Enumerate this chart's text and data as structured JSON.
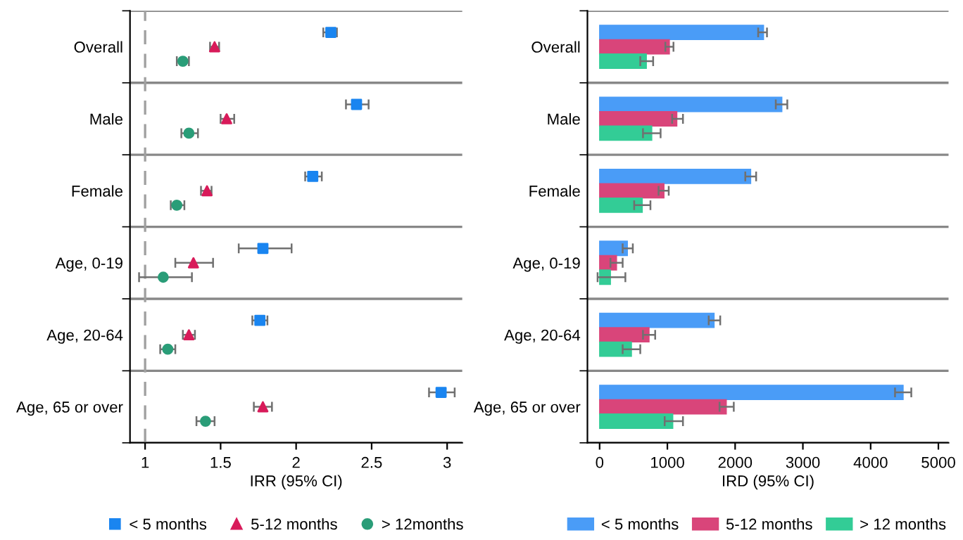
{
  "chart_data": [
    {
      "type": "scatter",
      "orientation": "horizontal",
      "categories": [
        "Overall",
        "Male",
        "Female",
        "Age, 0-19",
        "Age, 20-64",
        "Age, 65 or over"
      ],
      "xlabel": "IRR (95% CI)",
      "xlim": [
        0.9,
        3.1
      ],
      "xticks": [
        1,
        1.5,
        2,
        2.5,
        3
      ],
      "grid": "y",
      "legend": "bottom",
      "ref_lines": [
        {
          "axis": "x",
          "value": 1,
          "label": null,
          "color": "#a0a0a0",
          "line_style": "dashed"
        }
      ],
      "series": [
        {
          "name": "< 5 months",
          "color": "#1a85f0",
          "marker": "square",
          "values": [
            2.23,
            2.4,
            2.11,
            1.78,
            1.76,
            2.96
          ],
          "errors": [
            [
              2.18,
              2.27
            ],
            [
              2.33,
              2.48
            ],
            [
              2.06,
              2.17
            ],
            [
              1.62,
              1.97
            ],
            [
              1.71,
              1.81
            ],
            [
              2.88,
              3.05
            ]
          ]
        },
        {
          "name": "5-12 months",
          "color": "#d81b5a",
          "marker": "triangle",
          "values": [
            1.46,
            1.54,
            1.41,
            1.32,
            1.29,
            1.78
          ],
          "errors": [
            [
              1.43,
              1.49
            ],
            [
              1.5,
              1.59
            ],
            [
              1.37,
              1.44
            ],
            [
              1.2,
              1.45
            ],
            [
              1.25,
              1.33
            ],
            [
              1.72,
              1.84
            ]
          ]
        },
        {
          "name": "> 12months",
          "color": "#2a9d78",
          "marker": "circle",
          "values": [
            1.25,
            1.29,
            1.21,
            1.12,
            1.15,
            1.4
          ],
          "errors": [
            [
              1.21,
              1.29
            ],
            [
              1.24,
              1.35
            ],
            [
              1.17,
              1.26
            ],
            [
              0.96,
              1.31
            ],
            [
              1.1,
              1.2
            ],
            [
              1.34,
              1.46
            ]
          ]
        }
      ]
    },
    {
      "type": "bar",
      "orientation": "horizontal",
      "categories": [
        "Overall",
        "Male",
        "Female",
        "Age, 0-19",
        "Age, 20-64",
        "Age, 65 or over"
      ],
      "xlabel": "IRD (95% CI)",
      "xlim": [
        -180,
        5150
      ],
      "xticks": [
        0,
        1000,
        2000,
        3000,
        4000,
        5000
      ],
      "grid": "y",
      "legend": "bottom",
      "series": [
        {
          "name": "< 5 months",
          "color": "#4a9cf7",
          "values": [
            2420,
            2690,
            2230,
            410,
            1690,
            4480
          ],
          "errors": [
            [
              2340,
              2470
            ],
            [
              2600,
              2770
            ],
            [
              2150,
              2310
            ],
            [
              340,
              490
            ],
            [
              1610,
              1780
            ],
            [
              4360,
              4600
            ]
          ]
        },
        {
          "name": "5-12 months",
          "color": "#d9457a",
          "values": [
            1030,
            1140,
            950,
            250,
            730,
            1870
          ],
          "errors": [
            [
              970,
              1090
            ],
            [
              1070,
              1230
            ],
            [
              870,
              1020
            ],
            [
              160,
              340
            ],
            [
              640,
              820
            ],
            [
              1770,
              1980
            ]
          ]
        },
        {
          "name": "> 12 months",
          "color": "#33cc96",
          "values": [
            690,
            770,
            630,
            160,
            470,
            1080
          ],
          "errors": [
            [
              600,
              790
            ],
            [
              640,
              900
            ],
            [
              510,
              750
            ],
            [
              -30,
              380
            ],
            [
              340,
              600
            ],
            [
              960,
              1230
            ]
          ]
        }
      ]
    }
  ]
}
